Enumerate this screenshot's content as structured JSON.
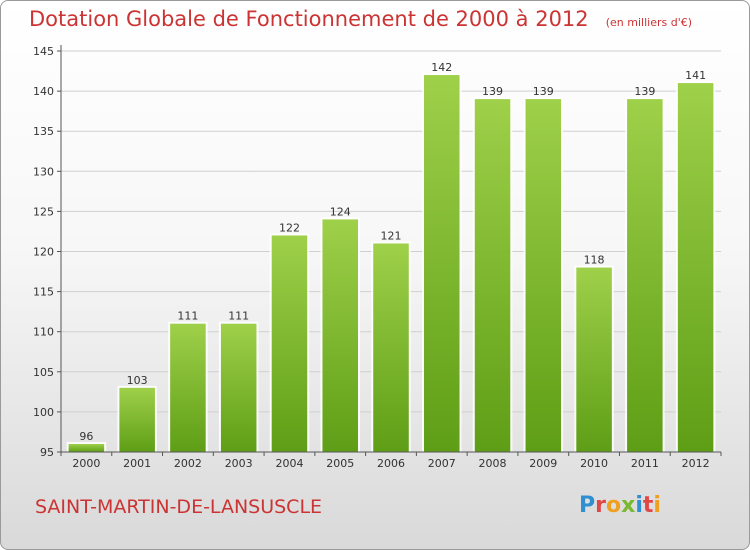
{
  "header": {
    "title": "Dotation Globale de Fonctionnement de 2000 à 2012",
    "unit": "(en milliers d'€)"
  },
  "footer": {
    "commune": "SAINT-MARTIN-DE-LANSUSCLE",
    "logo_letters": [
      "P",
      "r",
      "o",
      "x",
      "i",
      "t",
      "i"
    ],
    "logo_colors": [
      "#2f8fd0",
      "#e04848",
      "#f0a020",
      "#7ab830",
      "#2f8fd0",
      "#e04848",
      "#f0a020"
    ]
  },
  "colors": {
    "title": "#cc3333",
    "bar_top": "#9fd04a",
    "bar_bottom": "#5e9e16",
    "axis": "#555555",
    "grid": "#cfcfcf"
  },
  "chart_data": {
    "type": "bar",
    "categories": [
      "2000",
      "2001",
      "2002",
      "2003",
      "2004",
      "2005",
      "2006",
      "2007",
      "2008",
      "2009",
      "2010",
      "2011",
      "2012"
    ],
    "values": [
      96,
      103,
      111,
      111,
      122,
      124,
      121,
      142,
      139,
      139,
      118,
      139,
      141
    ],
    "ylim": [
      95,
      145
    ],
    "yticks": [
      95,
      100,
      105,
      110,
      115,
      120,
      125,
      130,
      135,
      140,
      145
    ],
    "grid": true,
    "legend": "none"
  }
}
